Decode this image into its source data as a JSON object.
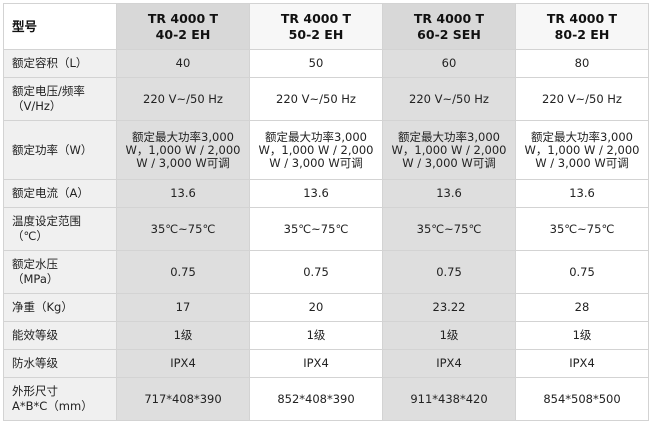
{
  "header": {
    "label": "型号",
    "models": [
      {
        "line1": "TR 4000 T",
        "line2": "40-2 EH"
      },
      {
        "line1": "TR 4000 T",
        "line2": "50-2 EH"
      },
      {
        "line1": "TR 4000 T",
        "line2": "60-2 SEH"
      },
      {
        "line1": "TR 4000 T",
        "line2": "80-2 EH"
      }
    ]
  },
  "rows": [
    {
      "label": [
        "额定容积（L）"
      ],
      "values": [
        "40",
        "50",
        "60",
        "80"
      ]
    },
    {
      "label": [
        "额定电压/频率",
        "（V/Hz）"
      ],
      "values": [
        "220 V~/50 Hz",
        "220 V~/50 Hz",
        "220 V~/50 Hz",
        "220 V~/50 Hz"
      ]
    },
    {
      "label": [
        "额定功率（W）"
      ],
      "values": [
        [
          "额定最大功率3,000",
          "W，1,000 W / 2,000",
          "W / 3,000 W可调"
        ],
        [
          "额定最大功率3,000",
          "W，1,000 W / 2,000",
          "W / 3,000 W可调"
        ],
        [
          "额定最大功率3,000",
          "W，1,000 W / 2,000",
          "W / 3,000 W可调"
        ],
        [
          "额定最大功率3,000",
          "W，1,000 W / 2,000",
          "W / 3,000 W可调"
        ]
      ]
    },
    {
      "label": [
        "额定电流（A）"
      ],
      "values": [
        "13.6",
        "13.6",
        "13.6",
        "13.6"
      ]
    },
    {
      "label": [
        "温度设定范围",
        "（℃）"
      ],
      "values": [
        "35℃~75℃",
        "35℃~75℃",
        "35℃~75℃",
        "35℃~75℃"
      ]
    },
    {
      "label": [
        "额定水压",
        "（MPa）"
      ],
      "values": [
        "0.75",
        "0.75",
        "0.75",
        "0.75"
      ]
    },
    {
      "label": [
        "净重（Kg）"
      ],
      "values": [
        "17",
        "20",
        "23.22",
        "28"
      ]
    },
    {
      "label": [
        "能效等级"
      ],
      "values": [
        "1级",
        "1级",
        "1级",
        "1级"
      ]
    },
    {
      "label": [
        "防水等级"
      ],
      "values": [
        "IPX4",
        "IPX4",
        "IPX4",
        "IPX4"
      ]
    },
    {
      "label": [
        "外形尺寸",
        "A*B*C（mm）"
      ],
      "values": [
        "717*408*390",
        "852*408*390",
        "911*438*420",
        "854*508*500"
      ]
    }
  ]
}
